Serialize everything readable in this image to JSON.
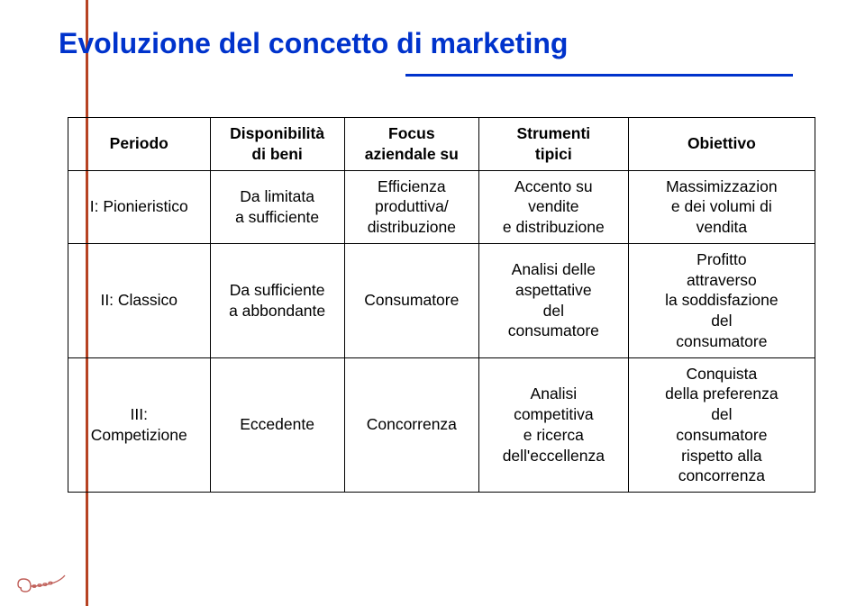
{
  "title": "Evoluzione del concetto di marketing",
  "colors": {
    "title": "#0033cc",
    "rule": "#0033cc",
    "side_rule": "#b74323",
    "border": "#000000",
    "text": "#000000",
    "background": "#ffffff",
    "logo": "#c0605a"
  },
  "typography": {
    "title_fontsize_pt": 24,
    "title_weight": "bold",
    "cell_fontsize_pt": 13,
    "header_weight": "bold",
    "font_family": "Arial"
  },
  "table": {
    "headers": [
      "Periodo",
      "Disponibilità\ndi beni",
      "Focus\naziendale su",
      "Strumenti\ntipici",
      "Obiettivo"
    ],
    "rows": [
      [
        "I: Pionieristico",
        "Da limitata\na sufficiente",
        "Efficienza\nproduttiva/\ndistribuzione",
        "Accento su\nvendite\ne distribuzione",
        "Massimizzazion\ne dei volumi di\nvendita"
      ],
      [
        "II: Classico",
        "Da sufficiente\na abbondante",
        "Consumatore",
        "Analisi delle\naspettative\ndel\nconsumatore",
        "Profitto\nattraverso\nla soddisfazione\ndel\nconsumatore"
      ],
      [
        "III:\nCompetizione",
        "Eccedente",
        "Concorrenza",
        "Analisi\ncompetitiva\ne ricerca\ndell'eccellenza",
        "Conquista\ndella preferenza\ndel\nconsumatore\nrispetto alla\nconcorrenza"
      ]
    ],
    "column_widths_pct": [
      19,
      18,
      18,
      20,
      25
    ]
  }
}
